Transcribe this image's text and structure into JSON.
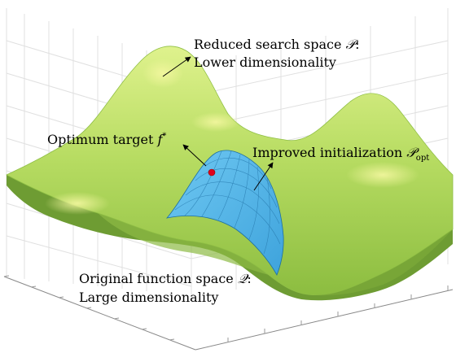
{
  "labels": {
    "reduced_line1": "Reduced search space ",
    "reduced_symbol": "𝒫",
    "reduced_colon": ":",
    "reduced_line2": "Lower dimensionality",
    "optimum_text": "Optimum target ",
    "optimum_symbol": "f",
    "optimum_sup": "*",
    "improved_text": "Improved initialization ",
    "improved_symbol": "𝒫",
    "improved_sub": "opt",
    "original_line1": "Original function space ",
    "original_symbol": "𝒬",
    "original_colon": ":",
    "original_line2": "Large dimensionality"
  },
  "colors": {
    "surface_light": "#d8ef86",
    "surface_mid": "#a9d457",
    "surface_dark": "#7fb13a",
    "subspace_fill": "#59b8ea",
    "subspace_edge": "#1f6f9f",
    "optimum_point": "#e0001b",
    "grid": "#e3e3e3"
  }
}
